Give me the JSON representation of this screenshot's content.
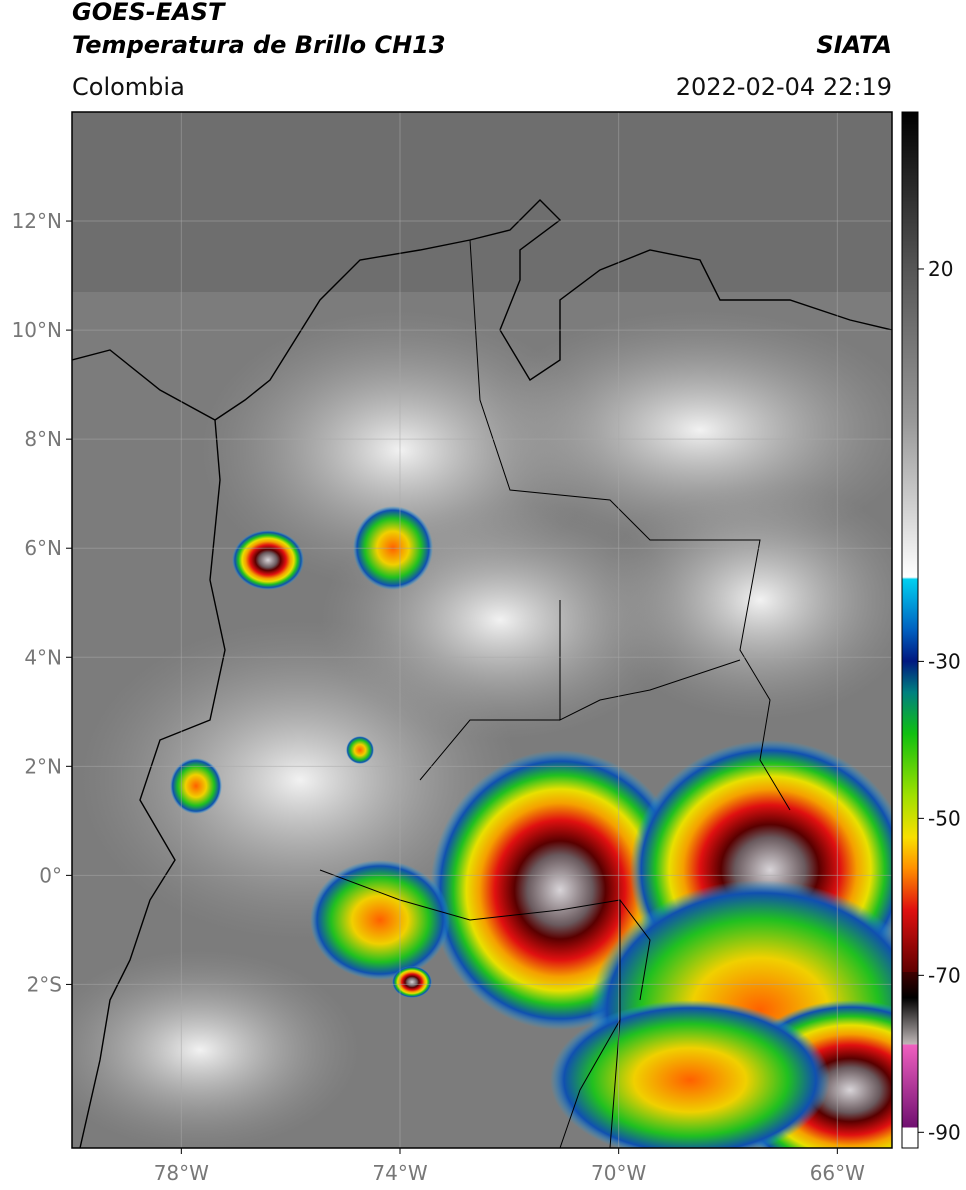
{
  "header": {
    "title": "GOES-EAST",
    "subtitle": "Temperatura de Brillo CH13",
    "region": "Colombia",
    "source": "SIATA",
    "datetime": "2022-02-04 22:19"
  },
  "map": {
    "lon_range": [
      -80,
      -65
    ],
    "lat_range": [
      -5,
      14
    ],
    "lat_ticks": [
      {
        "value": 12,
        "label": "12°N"
      },
      {
        "value": 10,
        "label": "10°N"
      },
      {
        "value": 8,
        "label": "8°N"
      },
      {
        "value": 6,
        "label": "6°N"
      },
      {
        "value": 4,
        "label": "4°N"
      },
      {
        "value": 2,
        "label": "2°N"
      },
      {
        "value": 0,
        "label": "0°"
      },
      {
        "value": -2,
        "label": "2°S"
      }
    ],
    "lon_ticks": [
      {
        "value": -78,
        "label": "78°W"
      },
      {
        "value": -74,
        "label": "74°W"
      },
      {
        "value": -70,
        "label": "70°W"
      },
      {
        "value": -66,
        "label": "66°W"
      }
    ]
  },
  "colorbar": {
    "range": [
      -92,
      40
    ],
    "ticks": [
      20,
      -30,
      -50,
      -70,
      -90
    ]
  }
}
